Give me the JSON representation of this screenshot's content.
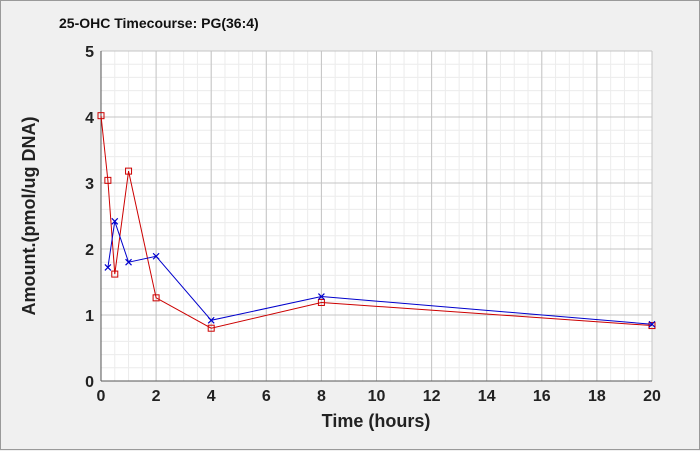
{
  "chart_data": {
    "type": "line",
    "title": "25-OHC Timecourse: PG(36:4)",
    "xlabel": "Time (hours)",
    "ylabel": "Amount.(pmol/ug DNA)",
    "xlim": [
      0,
      20
    ],
    "ylim": [
      0,
      5
    ],
    "x_ticks": [
      0,
      2,
      4,
      6,
      8,
      10,
      12,
      14,
      16,
      18,
      20
    ],
    "y_ticks": [
      0,
      1,
      2,
      3,
      4,
      5
    ],
    "grid": true,
    "series": [
      {
        "color": "#cc0000",
        "marker": "square",
        "x": [
          0,
          0.25,
          0.5,
          1,
          2,
          4,
          8,
          20
        ],
        "y": [
          4.02,
          3.04,
          1.62,
          3.18,
          1.26,
          0.8,
          1.19,
          0.84
        ]
      },
      {
        "color": "#0000cc",
        "marker": "x",
        "x": [
          0.25,
          0.5,
          1,
          2,
          4,
          8,
          20
        ],
        "y": [
          1.72,
          2.42,
          1.8,
          1.89,
          0.92,
          1.28,
          0.86
        ]
      }
    ]
  }
}
